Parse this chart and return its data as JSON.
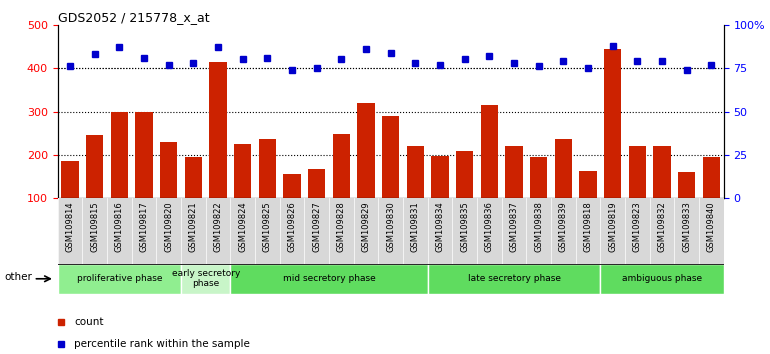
{
  "title": "GDS2052 / 215778_x_at",
  "samples": [
    "GSM109814",
    "GSM109815",
    "GSM109816",
    "GSM109817",
    "GSM109820",
    "GSM109821",
    "GSM109822",
    "GSM109824",
    "GSM109825",
    "GSM109826",
    "GSM109827",
    "GSM109828",
    "GSM109829",
    "GSM109830",
    "GSM109831",
    "GSM109834",
    "GSM109835",
    "GSM109836",
    "GSM109837",
    "GSM109838",
    "GSM109839",
    "GSM109818",
    "GSM109819",
    "GSM109823",
    "GSM109832",
    "GSM109833",
    "GSM109840"
  ],
  "counts": [
    185,
    245,
    300,
    300,
    230,
    195,
    415,
    225,
    237,
    155,
    168,
    248,
    320,
    290,
    220,
    198,
    210,
    315,
    220,
    195,
    237,
    162,
    445,
    220,
    220,
    160,
    195
  ],
  "percentiles": [
    76,
    83,
    87,
    81,
    77,
    78,
    87,
    80,
    81,
    74,
    75,
    80,
    86,
    84,
    78,
    77,
    80,
    82,
    78,
    76,
    79,
    75,
    88,
    79,
    79,
    74,
    77
  ],
  "phase_groups": [
    {
      "label": "proliferative phase",
      "start": 0,
      "end": 5,
      "color": "#90EE90"
    },
    {
      "label": "early secretory\nphase",
      "start": 5,
      "end": 7,
      "color": "#c8f5c8"
    },
    {
      "label": "mid secretory phase",
      "start": 7,
      "end": 15,
      "color": "#5fdc5f"
    },
    {
      "label": "late secretory phase",
      "start": 15,
      "end": 22,
      "color": "#5fdc5f"
    },
    {
      "label": "ambiguous phase",
      "start": 22,
      "end": 27,
      "color": "#5fdc5f"
    }
  ],
  "bar_color": "#cc2200",
  "dot_color": "#0000cc",
  "ylim_left": [
    100,
    500
  ],
  "ylim_right": [
    0,
    100
  ],
  "yticks_left": [
    100,
    200,
    300,
    400,
    500
  ],
  "yticks_right": [
    0,
    25,
    50,
    75,
    100
  ],
  "ytick_labels_right": [
    "0",
    "25",
    "50",
    "75",
    "100%"
  ],
  "grid_values": [
    200,
    300,
    400
  ],
  "plot_bg": "#ffffff",
  "other_label": "other",
  "tick_bg": "#d8d8d8",
  "prolif_color": "#90EE90",
  "early_color": "#c8f5c8",
  "mid_color": "#5fdc5f",
  "late_color": "#5fdc5f",
  "ambig_color": "#5fdc5f"
}
